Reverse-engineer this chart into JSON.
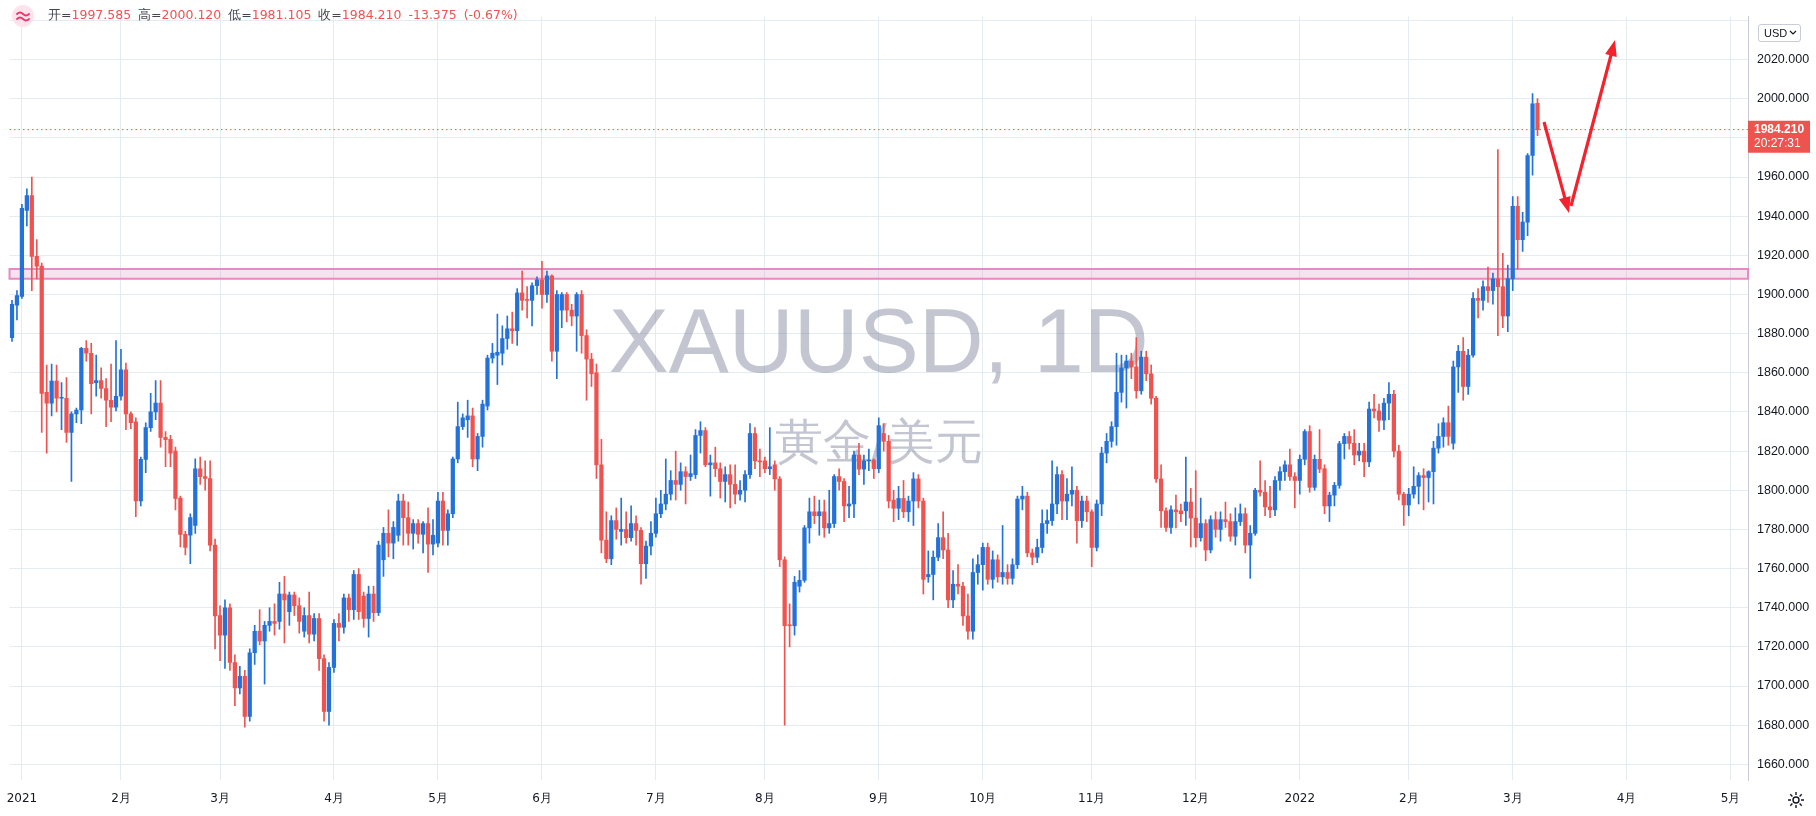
{
  "chart_data": {
    "type": "candlestick",
    "title": "XAUUSD, 1D",
    "subtitle": "黄金/美元",
    "categories": [
      null,
      null,
      "2021",
      null,
      null,
      null,
      null,
      null,
      null,
      null,
      null,
      null,
      null,
      null,
      null,
      null,
      null,
      null,
      null,
      null,
      null,
      null,
      "2月",
      null,
      null,
      null,
      null,
      null,
      null,
      null,
      null,
      null,
      null,
      null,
      null,
      null,
      null,
      null,
      null,
      null,
      null,
      null,
      "3月",
      null,
      null,
      null,
      null,
      null,
      null,
      null,
      null,
      null,
      null,
      null,
      null,
      null,
      null,
      null,
      null,
      null,
      null,
      null,
      null,
      null,
      null,
      "4月",
      null,
      null,
      null,
      null,
      null,
      null,
      null,
      null,
      null,
      null,
      null,
      null,
      null,
      null,
      null,
      null,
      null,
      null,
      null,
      null,
      "5月",
      null,
      null,
      null,
      null,
      null,
      null,
      null,
      null,
      null,
      null,
      null,
      null,
      null,
      null,
      null,
      null,
      null,
      null,
      null,
      null,
      "6月",
      null,
      null,
      null,
      null,
      null,
      null,
      null,
      null,
      null,
      null,
      null,
      null,
      null,
      null,
      null,
      null,
      null,
      null,
      null,
      null,
      null,
      null,
      "7月",
      null,
      null,
      null,
      null,
      null,
      null,
      null,
      null,
      null,
      null,
      null,
      null,
      null,
      null,
      null,
      null,
      null,
      null,
      null,
      null,
      null,
      "8月",
      null,
      null,
      null,
      null,
      null,
      null,
      null,
      null,
      null,
      null,
      null,
      null,
      null,
      null,
      null,
      null,
      null,
      null,
      null,
      null,
      null,
      null,
      "9月",
      null,
      null,
      null,
      null,
      null,
      null,
      null,
      null,
      null,
      null,
      null,
      null,
      null,
      null,
      null,
      null,
      null,
      null,
      null,
      null,
      "10月",
      null,
      null,
      null,
      null,
      null,
      null,
      null,
      null,
      null,
      null,
      null,
      null,
      null,
      null,
      null,
      null,
      null,
      null,
      null,
      null,
      null,
      "11月",
      null,
      null,
      null,
      null,
      null,
      null,
      null,
      null,
      null,
      null,
      null,
      null,
      null,
      null,
      null,
      null,
      null,
      null,
      null,
      null,
      "12月",
      null,
      null,
      null,
      null,
      null,
      null,
      null,
      null,
      null,
      null,
      null,
      null,
      null,
      null,
      null,
      null,
      null,
      null,
      null,
      null,
      "2022",
      null,
      null,
      null,
      null,
      null,
      null,
      null,
      null,
      null,
      null,
      null,
      null,
      null,
      null,
      null,
      null,
      null,
      null,
      null,
      null,
      null,
      "2月",
      null,
      null,
      null,
      null,
      null,
      null,
      null,
      null,
      null,
      null,
      null,
      null,
      null,
      null,
      null,
      null,
      null,
      null,
      null,
      null,
      "3月",
      null,
      null,
      null,
      null,
      null,
      null,
      null,
      null,
      null,
      null,
      null,
      null,
      null,
      null,
      null,
      null,
      null,
      null,
      null,
      null,
      null,
      null,
      "4月",
      null,
      null,
      null,
      null,
      null,
      null,
      null,
      null,
      null,
      null,
      null,
      null,
      null,
      null,
      null,
      null,
      null,
      null,
      null,
      null,
      "5月",
      null,
      null,
      null
    ],
    "ohlc": [
      [
        1878,
        1897,
        1876,
        1895
      ],
      [
        1894.5,
        1902,
        1887,
        1899.5
      ],
      [
        1899,
        1946,
        1898,
        1944
      ],
      [
        1943,
        1954,
        1935,
        1950.5
      ],
      [
        1950.5,
        1960,
        1902,
        1919.5
      ],
      [
        1919.5,
        1928,
        1908,
        1914.5
      ],
      [
        1914.5,
        1916,
        1829.5,
        1849.5
      ],
      [
        1850,
        1864,
        1819,
        1844.5
      ],
      [
        1844.5,
        1864.5,
        1838,
        1855.8
      ],
      [
        1855.8,
        1864,
        1840,
        1847
      ],
      [
        1847,
        1855,
        1831,
        1847.5
      ],
      [
        1847,
        1857.5,
        1824.5,
        1829.5
      ],
      [
        1829.5,
        1840,
        1804.5,
        1839
      ],
      [
        1839,
        1842,
        1834.5,
        1841
      ],
      [
        1841,
        1873,
        1834,
        1872.5
      ],
      [
        1872.5,
        1876.5,
        1866,
        1870
      ],
      [
        1870,
        1875,
        1839,
        1854.5
      ],
      [
        1855,
        1869,
        1848,
        1856
      ],
      [
        1856,
        1862.5,
        1847,
        1852
      ],
      [
        1852,
        1857,
        1832.5,
        1846
      ],
      [
        1846,
        1864.5,
        1835,
        1842.5
      ],
      [
        1842.5,
        1876.5,
        1840.5,
        1848
      ],
      [
        1848,
        1872,
        1846,
        1861.5
      ],
      [
        1861.5,
        1865,
        1831,
        1839
      ],
      [
        1839,
        1840,
        1831.5,
        1834.5
      ],
      [
        1835,
        1837,
        1786.5,
        1794.5
      ],
      [
        1794.5,
        1817,
        1792,
        1815.8
      ],
      [
        1815.8,
        1834.5,
        1809,
        1832
      ],
      [
        1832,
        1849.5,
        1830,
        1840
      ],
      [
        1840,
        1856,
        1836,
        1844.5
      ],
      [
        1844.5,
        1856,
        1822,
        1827
      ],
      [
        1827,
        1830,
        1812,
        1825.8
      ],
      [
        1826,
        1828,
        1812,
        1819
      ],
      [
        1820,
        1822,
        1790,
        1795.8
      ],
      [
        1796,
        1797,
        1771,
        1777.5
      ],
      [
        1777.5,
        1779,
        1767,
        1770.8
      ],
      [
        1777,
        1788,
        1762.5,
        1786
      ],
      [
        1782,
        1816,
        1778,
        1811
      ],
      [
        1811,
        1817,
        1803,
        1807
      ],
      [
        1807,
        1815,
        1800,
        1806
      ],
      [
        1806,
        1815,
        1769,
        1772
      ],
      [
        1772,
        1775,
        1719,
        1735.8
      ],
      [
        1736,
        1741,
        1713,
        1726
      ],
      [
        1726,
        1744,
        1709,
        1740
      ],
      [
        1740,
        1742,
        1708,
        1712
      ],
      [
        1712,
        1716,
        1690,
        1699
      ],
      [
        1699,
        1710,
        1696,
        1705
      ],
      [
        1705,
        1708,
        1679,
        1684.5
      ],
      [
        1684.5,
        1719,
        1682,
        1717
      ],
      [
        1717,
        1731,
        1711,
        1728
      ],
      [
        1728,
        1739,
        1721,
        1723
      ],
      [
        1723,
        1733,
        1701,
        1731
      ],
      [
        1731,
        1740,
        1728,
        1733
      ],
      [
        1733,
        1742,
        1726,
        1732
      ],
      [
        1733,
        1753,
        1729,
        1747
      ],
      [
        1747,
        1756,
        1722,
        1744
      ],
      [
        1738,
        1748,
        1731,
        1746.5
      ],
      [
        1746.5,
        1748,
        1736,
        1741
      ],
      [
        1741,
        1745,
        1727,
        1733
      ],
      [
        1728,
        1740,
        1725,
        1736
      ],
      [
        1736,
        1748,
        1722,
        1726.5
      ],
      [
        1726.5,
        1737,
        1723,
        1734.5
      ],
      [
        1734.5,
        1737,
        1708,
        1714
      ],
      [
        1714,
        1716,
        1682,
        1687
      ],
      [
        1687,
        1712,
        1680,
        1709.5
      ],
      [
        1709.5,
        1734,
        1707,
        1732
      ],
      [
        1732,
        1737,
        1723,
        1730
      ],
      [
        1730,
        1747,
        1727,
        1745
      ],
      [
        1745,
        1747,
        1733,
        1739
      ],
      [
        1739,
        1759,
        1734,
        1757
      ],
      [
        1757,
        1760,
        1734,
        1738
      ],
      [
        1746,
        1748,
        1730,
        1734.5
      ],
      [
        1734.5,
        1751,
        1725,
        1747
      ],
      [
        1747,
        1751,
        1733,
        1737.5
      ],
      [
        1737.5,
        1774,
        1736,
        1772
      ],
      [
        1764.5,
        1781,
        1756,
        1778
      ],
      [
        1778,
        1790,
        1766,
        1773
      ],
      [
        1773,
        1784,
        1765,
        1781
      ],
      [
        1777,
        1798,
        1774,
        1794.5
      ],
      [
        1794.5,
        1798,
        1772,
        1786
      ],
      [
        1786,
        1794,
        1772,
        1778
      ],
      [
        1778,
        1785,
        1770,
        1783
      ],
      [
        1783,
        1785,
        1773,
        1777.5
      ],
      [
        1777.5,
        1784,
        1768,
        1783
      ],
      [
        1783,
        1791,
        1758,
        1772.5
      ],
      [
        1772.5,
        1785,
        1767,
        1777
      ],
      [
        1773,
        1799,
        1771,
        1794.5
      ],
      [
        1794.5,
        1799,
        1772,
        1779.5
      ],
      [
        1779.5,
        1790,
        1772,
        1788
      ],
      [
        1788,
        1817,
        1786,
        1816
      ],
      [
        1816,
        1845,
        1814,
        1832.5
      ],
      [
        1832.5,
        1839,
        1831,
        1837
      ],
      [
        1836,
        1846,
        1827,
        1838
      ],
      [
        1838,
        1842,
        1812,
        1816
      ],
      [
        1816,
        1829,
        1810,
        1827.5
      ],
      [
        1827.5,
        1846,
        1822,
        1844
      ],
      [
        1843,
        1869,
        1841,
        1867.5
      ],
      [
        1867.5,
        1875,
        1865,
        1870
      ],
      [
        1869,
        1890,
        1854,
        1870.5
      ],
      [
        1870,
        1884,
        1864,
        1877.5
      ],
      [
        1877.5,
        1889,
        1872,
        1882.5
      ],
      [
        1882.5,
        1891,
        1875,
        1881.5
      ],
      [
        1881.5,
        1903,
        1874,
        1900.8
      ],
      [
        1900.8,
        1912,
        1892,
        1897
      ],
      [
        1897.5,
        1904,
        1888,
        1897
      ],
      [
        1897,
        1906,
        1884,
        1904.5
      ],
      [
        1904.5,
        1909,
        1900,
        1907.5
      ],
      [
        1907.5,
        1917,
        1893,
        1900
      ],
      [
        1900,
        1912,
        1896,
        1909.5
      ],
      [
        1909.5,
        1910,
        1866,
        1871
      ],
      [
        1871,
        1902,
        1857,
        1900
      ],
      [
        1892,
        1901,
        1883,
        1900
      ],
      [
        1900,
        1901,
        1886,
        1892
      ],
      [
        1892,
        1895,
        1884,
        1889
      ],
      [
        1889,
        1901,
        1871,
        1900
      ],
      [
        1900,
        1902,
        1870,
        1879
      ],
      [
        1879,
        1882,
        1846,
        1867
      ],
      [
        1867,
        1870,
        1853,
        1859.5
      ],
      [
        1860,
        1864.5,
        1806,
        1813
      ],
      [
        1813,
        1826,
        1768,
        1774.5
      ],
      [
        1774.5,
        1789,
        1763,
        1765
      ],
      [
        1765,
        1787,
        1762,
        1784.5
      ],
      [
        1784.5,
        1791,
        1775,
        1780
      ],
      [
        1779,
        1796,
        1772,
        1780
      ],
      [
        1780,
        1789,
        1773,
        1775.8
      ],
      [
        1775.8,
        1792,
        1774,
        1783
      ],
      [
        1783,
        1787,
        1772,
        1779.5
      ],
      [
        1779.5,
        1781,
        1752,
        1762.5
      ],
      [
        1762.5,
        1774,
        1755,
        1771.5
      ],
      [
        1771.5,
        1784,
        1767,
        1778
      ],
      [
        1778,
        1796,
        1776,
        1788
      ],
      [
        1788,
        1800,
        1786,
        1793
      ],
      [
        1793,
        1816,
        1790,
        1798
      ],
      [
        1798,
        1810,
        1795,
        1805
      ],
      [
        1805,
        1820,
        1795,
        1803
      ],
      [
        1803,
        1814,
        1800,
        1809.5
      ],
      [
        1809.5,
        1812,
        1793,
        1807
      ],
      [
        1807,
        1818,
        1805,
        1808.5
      ],
      [
        1808,
        1831,
        1806,
        1828
      ],
      [
        1828,
        1835,
        1819,
        1830.5
      ],
      [
        1830.5,
        1832,
        1812,
        1813
      ],
      [
        1813,
        1818,
        1797,
        1814
      ],
      [
        1814,
        1822,
        1807,
        1811
      ],
      [
        1811,
        1814,
        1796,
        1804.5
      ],
      [
        1804.5,
        1812,
        1794,
        1808
      ],
      [
        1808,
        1813,
        1791,
        1803
      ],
      [
        1803,
        1813,
        1793,
        1798
      ],
      [
        1798,
        1805,
        1795,
        1800
      ],
      [
        1800,
        1810,
        1794,
        1808
      ],
      [
        1808,
        1834,
        1806,
        1829
      ],
      [
        1829,
        1832,
        1811,
        1815
      ],
      [
        1815,
        1821,
        1807,
        1814.5
      ],
      [
        1815,
        1817,
        1809,
        1811
      ],
      [
        1811,
        1832,
        1808,
        1812
      ],
      [
        1813,
        1815,
        1800,
        1805.8
      ],
      [
        1805.8,
        1807,
        1761,
        1764.5
      ],
      [
        1764.5,
        1766,
        1680,
        1730.8
      ],
      [
        1731,
        1742,
        1720,
        1730.8
      ],
      [
        1730.8,
        1756,
        1726,
        1753
      ],
      [
        1751,
        1759,
        1748,
        1754
      ],
      [
        1754,
        1782,
        1753,
        1780.8
      ],
      [
        1780.8,
        1796,
        1773,
        1789
      ],
      [
        1789,
        1797,
        1783,
        1787
      ],
      [
        1787,
        1795,
        1777,
        1789
      ],
      [
        1789,
        1795,
        1776,
        1780.8
      ],
      [
        1780.8,
        1800,
        1778,
        1783
      ],
      [
        1783,
        1808,
        1781,
        1807
      ],
      [
        1807,
        1811,
        1800,
        1804.5
      ],
      [
        1804.5,
        1806,
        1784,
        1792
      ],
      [
        1792,
        1802,
        1786,
        1793
      ],
      [
        1793,
        1820,
        1786,
        1818
      ],
      [
        1818,
        1824,
        1808,
        1810.8
      ],
      [
        1810.8,
        1818,
        1803,
        1815
      ],
      [
        1815,
        1821,
        1810,
        1815.5
      ],
      [
        1815.5,
        1816,
        1806,
        1811
      ],
      [
        1811,
        1837,
        1809,
        1833
      ],
      [
        1829,
        1834,
        1820,
        1825
      ],
      [
        1825,
        1828,
        1791,
        1794.5
      ],
      [
        1795,
        1800,
        1784,
        1790.8
      ],
      [
        1790.8,
        1802,
        1785,
        1795.8
      ],
      [
        1795.8,
        1805,
        1786,
        1789
      ],
      [
        1789,
        1797,
        1784,
        1794.5
      ],
      [
        1794.5,
        1809,
        1782,
        1805.8
      ],
      [
        1805.8,
        1808,
        1791,
        1794.5
      ],
      [
        1794.5,
        1796,
        1747,
        1754.5
      ],
      [
        1755.8,
        1769,
        1753,
        1757
      ],
      [
        1757,
        1769,
        1744,
        1765.8
      ],
      [
        1765.8,
        1783,
        1764,
        1775.8
      ],
      [
        1775.8,
        1789,
        1765,
        1769.5
      ],
      [
        1769.5,
        1778,
        1740,
        1744
      ],
      [
        1744,
        1759,
        1740,
        1752
      ],
      [
        1752,
        1762,
        1747,
        1751
      ],
      [
        1751,
        1753,
        1731,
        1735.8
      ],
      [
        1735.8,
        1747,
        1724,
        1728
      ],
      [
        1728,
        1765,
        1724,
        1758
      ],
      [
        1758,
        1767,
        1752,
        1762
      ],
      [
        1762,
        1773,
        1749,
        1770.8
      ],
      [
        1770.8,
        1773,
        1752,
        1754.5
      ],
      [
        1754.5,
        1769,
        1750,
        1764.5
      ],
      [
        1764.5,
        1767,
        1753,
        1755.8
      ],
      [
        1755.8,
        1782,
        1752,
        1758
      ],
      [
        1758,
        1762,
        1752,
        1755
      ],
      [
        1755,
        1765,
        1752,
        1762
      ],
      [
        1762,
        1797,
        1760,
        1795.5
      ],
      [
        1795.5,
        1802,
        1790,
        1797
      ],
      [
        1797,
        1799,
        1766,
        1768
      ],
      [
        1768,
        1770,
        1762,
        1765.8
      ],
      [
        1765.8,
        1775,
        1763,
        1770.8
      ],
      [
        1770.8,
        1790,
        1768,
        1783
      ],
      [
        1783,
        1790,
        1778,
        1784.5
      ],
      [
        1784.5,
        1815,
        1782,
        1793
      ],
      [
        1793,
        1812,
        1788,
        1808
      ],
      [
        1808,
        1810,
        1785,
        1794.5
      ],
      [
        1794.5,
        1806,
        1785,
        1798
      ],
      [
        1798,
        1812,
        1792,
        1800
      ],
      [
        1800,
        1802,
        1773,
        1784.5
      ],
      [
        1784.5,
        1797,
        1781,
        1794.5
      ],
      [
        1794.5,
        1797,
        1784,
        1789
      ],
      [
        1789,
        1790,
        1761,
        1770.8
      ],
      [
        1770.8,
        1795,
        1769,
        1793
      ],
      [
        1793,
        1822,
        1787,
        1819
      ],
      [
        1819,
        1829,
        1814,
        1825
      ],
      [
        1825,
        1835,
        1822,
        1832.5
      ],
      [
        1832.5,
        1870,
        1823,
        1850
      ],
      [
        1850,
        1869,
        1845,
        1862.5
      ],
      [
        1862.5,
        1869,
        1842,
        1866
      ],
      [
        1866,
        1870,
        1857,
        1863
      ],
      [
        1863,
        1878,
        1847,
        1850.8
      ],
      [
        1850.8,
        1871,
        1849,
        1868
      ],
      [
        1868,
        1871,
        1856,
        1859.5
      ],
      [
        1859.5,
        1864,
        1844,
        1847
      ],
      [
        1847,
        1848,
        1804,
        1805.8
      ],
      [
        1805.8,
        1813,
        1781,
        1789.5
      ],
      [
        1789.5,
        1791,
        1779,
        1781
      ],
      [
        1781,
        1792,
        1778,
        1790
      ],
      [
        1790,
        1797.5,
        1780.8,
        1789
      ],
      [
        1789.5,
        1793,
        1784,
        1788
      ],
      [
        1789.5,
        1817,
        1782,
        1794
      ],
      [
        1794,
        1801,
        1771,
        1785.8
      ],
      [
        1785.8,
        1810,
        1771,
        1775.8
      ],
      [
        1775.8,
        1796,
        1774,
        1783
      ],
      [
        1783,
        1785,
        1764,
        1769.5
      ],
      [
        1769.5,
        1787,
        1768,
        1785
      ],
      [
        1785,
        1789,
        1776,
        1780
      ],
      [
        1780,
        1789,
        1774,
        1785
      ],
      [
        1785,
        1794,
        1781,
        1784
      ],
      [
        1784,
        1788,
        1774,
        1776.5
      ],
      [
        1776.5,
        1791,
        1772,
        1784
      ],
      [
        1784,
        1793,
        1782,
        1788
      ],
      [
        1788,
        1791,
        1768,
        1772
      ],
      [
        1772,
        1782,
        1755,
        1778
      ],
      [
        1778,
        1801,
        1777,
        1800
      ],
      [
        1800,
        1815,
        1797,
        1799
      ],
      [
        1799,
        1805,
        1787,
        1791.5
      ],
      [
        1791.5,
        1802,
        1786,
        1790
      ],
      [
        1790,
        1807,
        1787,
        1805
      ],
      [
        1805,
        1812,
        1800,
        1809.5
      ],
      [
        1809.5,
        1815,
        1805,
        1813
      ],
      [
        1813,
        1821,
        1805,
        1807
      ],
      [
        1807,
        1809,
        1791,
        1805
      ],
      [
        1805,
        1818,
        1798,
        1815.8
      ],
      [
        1815.8,
        1831,
        1813,
        1830
      ],
      [
        1830,
        1833,
        1799,
        1801.5
      ],
      [
        1801.5,
        1818,
        1800,
        1815.8
      ],
      [
        1815.8,
        1831,
        1809,
        1810.8
      ],
      [
        1811,
        1813,
        1788,
        1792
      ],
      [
        1792,
        1799,
        1784,
        1797.5
      ],
      [
        1797.5,
        1804,
        1792,
        1802.5
      ],
      [
        1802.5,
        1825,
        1801,
        1823.8
      ],
      [
        1823.8,
        1829,
        1816,
        1827.5
      ],
      [
        1827.5,
        1830,
        1821,
        1824
      ],
      [
        1824,
        1831,
        1813,
        1818
      ],
      [
        1818,
        1824,
        1815,
        1820
      ],
      [
        1820,
        1824,
        1807,
        1814.5
      ],
      [
        1814.5,
        1845,
        1812,
        1841.5
      ],
      [
        1841.5,
        1849,
        1837,
        1840.5
      ],
      [
        1840.5,
        1844,
        1830,
        1835.8
      ],
      [
        1835.8,
        1847,
        1831,
        1844.5
      ],
      [
        1844.5,
        1855,
        1836,
        1849
      ],
      [
        1849,
        1851,
        1817,
        1820
      ],
      [
        1820,
        1823,
        1795,
        1798
      ],
      [
        1798,
        1799,
        1782,
        1792.5
      ],
      [
        1792.5,
        1801,
        1787,
        1798
      ],
      [
        1798,
        1812,
        1796,
        1802
      ],
      [
        1802,
        1809,
        1793,
        1807.5
      ],
      [
        1807.5,
        1811,
        1790,
        1806.5
      ],
      [
        1806.5,
        1810,
        1794,
        1809.5
      ],
      [
        1809.5,
        1825,
        1793,
        1821.5
      ],
      [
        1821.5,
        1834,
        1819,
        1827.5
      ],
      [
        1827.5,
        1837,
        1822,
        1834.5
      ],
      [
        1834.5,
        1843,
        1823,
        1827.5
      ],
      [
        1824,
        1866,
        1821,
        1863
      ],
      [
        1863,
        1874,
        1850,
        1871
      ],
      [
        1871,
        1878,
        1846,
        1853
      ],
      [
        1853,
        1872,
        1849,
        1869
      ],
      [
        1869,
        1901,
        1868,
        1898
      ],
      [
        1898,
        1903,
        1888,
        1897
      ],
      [
        1897,
        1907,
        1892,
        1904
      ],
      [
        1904,
        1914,
        1896,
        1902
      ],
      [
        1902,
        1911,
        1895,
        1908
      ],
      [
        1908,
        1974,
        1879,
        1904
      ],
      [
        1904,
        1921,
        1883,
        1889
      ],
      [
        1889,
        1915,
        1881,
        1908
      ],
      [
        1908,
        1950,
        1902,
        1945
      ],
      [
        1945,
        1950,
        1913,
        1928
      ],
      [
        1928,
        1942,
        1922,
        1937
      ],
      [
        1937,
        1972,
        1930,
        1971
      ],
      [
        1971,
        2002.6,
        1961,
        1997.4
      ],
      [
        1997.585,
        2000.12,
        1981.105,
        1984.21
      ],
      null,
      null,
      null,
      null,
      null,
      null,
      null,
      null,
      null,
      null,
      null,
      null,
      null,
      null,
      null,
      null,
      null,
      null,
      null,
      null,
      null,
      null,
      null,
      null,
      null,
      null,
      null,
      null,
      null,
      null,
      null,
      null,
      null,
      null,
      null,
      null,
      null,
      null,
      null,
      null,
      null,
      null
    ],
    "colors": [
      "#2372d9",
      "#2372d9",
      "#2372d9",
      "#2372d9",
      "#ef5350",
      "#ef5350",
      "#ef5350",
      "#ef5350",
      "#2372d9",
      "#ef5350",
      "#2372d9",
      "#ef5350",
      "#2372d9",
      "#2372d9",
      "#2372d9",
      "#ef5350",
      "#ef5350",
      "#2372d9",
      "#ef5350",
      "#ef5350",
      "#ef5350",
      "#2372d9",
      "#2372d9",
      "#ef5350",
      "#ef5350",
      "#ef5350",
      "#2372d9",
      "#2372d9",
      "#2372d9",
      "#2372d9",
      "#ef5350",
      "#ef5350",
      "#ef5350",
      "#ef5350",
      "#ef5350",
      "#ef5350",
      "#2372d9",
      "#2372d9",
      "#ef5350",
      "#ef5350",
      "#ef5350",
      "#ef5350",
      "#ef5350",
      "#2372d9",
      "#ef5350",
      "#ef5350",
      "#2372d9",
      "#ef5350",
      "#2372d9",
      "#2372d9",
      "#ef5350",
      "#2372d9",
      "#2372d9",
      "#ef5350",
      "#2372d9",
      "#ef5350",
      "#2372d9",
      "#ef5350",
      "#ef5350",
      "#2372d9",
      "#ef5350",
      "#2372d9",
      "#ef5350",
      "#ef5350",
      "#2372d9",
      "#2372d9",
      "#ef5350",
      "#2372d9",
      "#ef5350",
      "#2372d9",
      "#ef5350",
      "#ef5350",
      "#2372d9",
      "#ef5350",
      "#2372d9",
      "#2372d9",
      "#ef5350",
      "#2372d9",
      "#2372d9",
      "#ef5350",
      "#ef5350",
      "#2372d9",
      "#ef5350",
      "#2372d9",
      "#ef5350",
      "#2372d9",
      "#2372d9",
      "#ef5350",
      "#2372d9",
      "#2372d9",
      "#2372d9",
      "#2372d9",
      "#2372d9",
      "#ef5350",
      "#2372d9",
      "#2372d9",
      "#2372d9",
      "#2372d9",
      "#2372d9",
      "#2372d9",
      "#2372d9",
      "#ef5350",
      "#2372d9",
      "#ef5350",
      "#ef5350",
      "#2372d9",
      "#2372d9",
      "#ef5350",
      "#2372d9",
      "#ef5350",
      "#2372d9",
      "#2372d9",
      "#ef5350",
      "#ef5350",
      "#2372d9",
      "#ef5350",
      "#ef5350",
      "#ef5350",
      "#ef5350",
      "#ef5350",
      "#ef5350",
      "#2372d9",
      "#ef5350",
      "#2372d9",
      "#ef5350",
      "#2372d9",
      "#ef5350",
      "#ef5350",
      "#2372d9",
      "#2372d9",
      "#2372d9",
      "#2372d9",
      "#2372d9",
      "#2372d9",
      "#ef5350",
      "#2372d9",
      "#ef5350",
      "#2372d9",
      "#2372d9",
      "#2372d9",
      "#ef5350",
      "#2372d9",
      "#ef5350",
      "#ef5350",
      "#2372d9",
      "#ef5350",
      "#ef5350",
      "#2372d9",
      "#2372d9",
      "#2372d9",
      "#ef5350",
      "#ef5350",
      "#ef5350",
      "#2372d9",
      "#ef5350",
      "#ef5350",
      "#ef5350",
      "#ef5350",
      "#2372d9",
      "#2372d9",
      "#2372d9",
      "#2372d9",
      "#ef5350",
      "#2372d9",
      "#ef5350",
      "#2372d9",
      "#2372d9",
      "#ef5350",
      "#ef5350",
      "#2372d9",
      "#2372d9",
      "#ef5350",
      "#2372d9",
      "#2372d9",
      "#ef5350",
      "#2372d9",
      "#ef5350",
      "#ef5350",
      "#ef5350",
      "#2372d9",
      "#ef5350",
      "#2372d9",
      "#2372d9",
      "#ef5350",
      "#ef5350",
      "#2372d9",
      "#2372d9",
      "#2372d9",
      "#ef5350",
      "#ef5350",
      "#2372d9",
      "#ef5350",
      "#ef5350",
      "#ef5350",
      "#2372d9",
      "#2372d9",
      "#2372d9",
      "#ef5350",
      "#2372d9",
      "#ef5350",
      "#2372d9",
      "#ef5350",
      "#2372d9",
      "#2372d9",
      "#2372d9",
      "#ef5350",
      "#ef5350",
      "#2372d9",
      "#2372d9",
      "#2372d9",
      "#2372d9",
      "#2372d9",
      "#ef5350",
      "#2372d9",
      "#2372d9",
      "#ef5350",
      "#2372d9",
      "#ef5350",
      "#ef5350",
      "#2372d9",
      "#2372d9",
      "#2372d9",
      "#2372d9",
      "#2372d9",
      "#2372d9",
      "#2372d9",
      "#ef5350",
      "#ef5350",
      "#2372d9",
      "#ef5350",
      "#ef5350",
      "#ef5350",
      "#ef5350",
      "#ef5350",
      "#2372d9",
      "#ef5350",
      "#ef5350",
      "#2372d9",
      "#ef5350",
      "#ef5350",
      "#2372d9",
      "#ef5350",
      "#2372d9",
      "#ef5350",
      "#2372d9",
      "#ef5350",
      "#ef5350",
      "#2372d9",
      "#2372d9",
      "#ef5350",
      "#2372d9",
      "#2372d9",
      "#ef5350",
      "#ef5350",
      "#ef5350",
      "#2372d9",
      "#2372d9",
      "#2372d9",
      "#ef5350",
      "#ef5350",
      "#2372d9",
      "#2372d9",
      "#ef5350",
      "#2372d9",
      "#ef5350",
      "#ef5350",
      "#2372d9",
      "#2372d9",
      "#2372d9",
      "#2372d9",
      "#ef5350",
      "#ef5350",
      "#2372d9",
      "#ef5350",
      "#2372d9",
      "#ef5350",
      "#ef5350",
      "#2372d9",
      "#2372d9",
      "#ef5350",
      "#ef5350",
      "#ef5350",
      "#2372d9",
      "#2372d9",
      "#2372d9",
      "#ef5350",
      "#2372d9",
      "#2372d9",
      "#2372d9",
      "#2372d9",
      "#ef5350",
      "#2372d9",
      "#2372d9",
      "#ef5350",
      "#2372d9",
      "#2372d9",
      "#ef5350",
      "#2372d9",
      "#ef5350",
      "#2372d9",
      "#ef5350",
      "#ef5350",
      "#2372d9",
      "#2372d9",
      "#ef5350",
      "#2372d9",
      "#2372d9",
      "#2372d9",
      "#ef5350",
      null,
      null,
      null,
      null,
      null,
      null,
      null,
      null,
      null,
      null,
      null,
      null,
      null,
      null,
      null,
      null,
      null,
      null,
      null,
      null,
      null,
      null,
      null,
      null,
      null,
      null,
      null,
      null,
      null,
      null,
      null,
      null,
      null,
      null,
      null,
      null,
      null,
      null,
      null,
      null,
      null,
      null
    ],
    "ylim": [
      1652,
      2042
    ],
    "yticks": [
      {
        "value": 1660,
        "label": "1660.000"
      },
      {
        "value": 1680,
        "label": "1680.000"
      },
      {
        "value": 1700,
        "label": "1700.000"
      },
      {
        "value": 1720,
        "label": "1720.000"
      },
      {
        "value": 1740,
        "label": "1740.000"
      },
      {
        "value": 1760,
        "label": "1760.000"
      },
      {
        "value": 1780,
        "label": "1780.000"
      },
      {
        "value": 1800,
        "label": "1800.000"
      },
      {
        "value": 1820,
        "label": "1820.000"
      },
      {
        "value": 1840,
        "label": "1840.000"
      },
      {
        "value": 1860,
        "label": "1860.000"
      },
      {
        "value": 1880,
        "label": "1880.000"
      },
      {
        "value": 1900,
        "label": "1900.000"
      },
      {
        "value": 1920,
        "label": "1920.000"
      },
      {
        "value": 1940,
        "label": "1940.000"
      },
      {
        "value": 1960,
        "label": "1960.000"
      },
      {
        "value": 1980,
        "label": null
      },
      {
        "value": 2000,
        "label": "2000.000"
      },
      {
        "value": 2020,
        "label": "2020.000"
      },
      {
        "value": 2040,
        "label": null
      }
    ],
    "grid": true,
    "ref_lines": [
      {
        "axis": "y",
        "value": 1984.21,
        "label": "1984.210",
        "color": "#ef5350",
        "line_style": "dotted"
      }
    ],
    "bands": [
      {
        "axis": "y",
        "from": 1908,
        "to": 1913,
        "color": "#e48cc1"
      }
    ],
    "annotations": [
      "开=1997.585 高=2000.120 低=1981.105 收=1984.210 -13.375 (-0.67%)",
      "20:27:31",
      "USD"
    ]
  }
}
